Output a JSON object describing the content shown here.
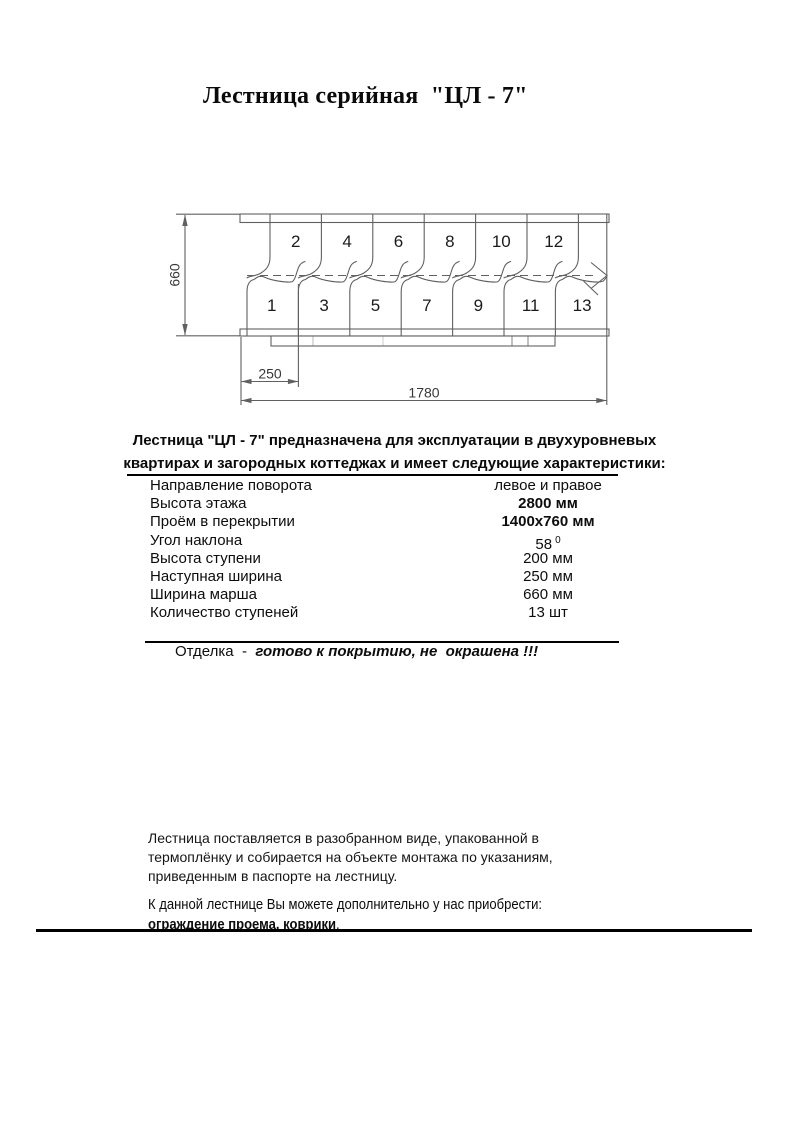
{
  "page": {
    "title": "Лестница серийная  \"ЦЛ - 7\""
  },
  "diagram": {
    "top_steps": [
      "2",
      "4",
      "6",
      "8",
      "10",
      "12"
    ],
    "bottom_steps": [
      "1",
      "3",
      "5",
      "7",
      "9",
      "11",
      "13"
    ],
    "dim_march_width": "660",
    "dim_tread_width": "250",
    "dim_total_length": "1780",
    "line_color": "#606060"
  },
  "intro": {
    "line1": "Лестница \"ЦЛ - 7\" предназначена для эксплуатации в двухуровневых",
    "line2": "квартирах и загородных коттеджах и имеет следующие характеристики:"
  },
  "specs": {
    "rows": [
      {
        "label": "Направление поворота",
        "value": "левое и правое"
      },
      {
        "label": "Высота этажа",
        "value": "2800 мм"
      },
      {
        "label": "Проём в перекрытии",
        "value": "1400х760 мм"
      },
      {
        "label": "Угол наклона",
        "value": "58",
        "sup": "0"
      },
      {
        "label": "Высота ступени",
        "value": "200 мм"
      },
      {
        "label": "Наступная ширина",
        "value": "250 мм"
      },
      {
        "label": "Ширина марша",
        "value": "660 мм"
      },
      {
        "label": "Количество ступеней",
        "value": "13 шт"
      }
    ],
    "finish": {
      "label": "Отделка",
      "sep": "  -  ",
      "value": "готово к покрытию, не  окрашена !!!"
    }
  },
  "delivery": {
    "line1": "Лестница поставляется в разобранном виде, упакованной в",
    "line2": "термоплёнку и собирается на объекте монтажа по указаниям,",
    "line3": "приведенным в паспорте на лестницу."
  },
  "extras": {
    "line1": "К данной лестнице Вы можете дополнительно у нас приобрести:",
    "bold_part": "ограждение проема, коврики",
    "tail": "."
  }
}
